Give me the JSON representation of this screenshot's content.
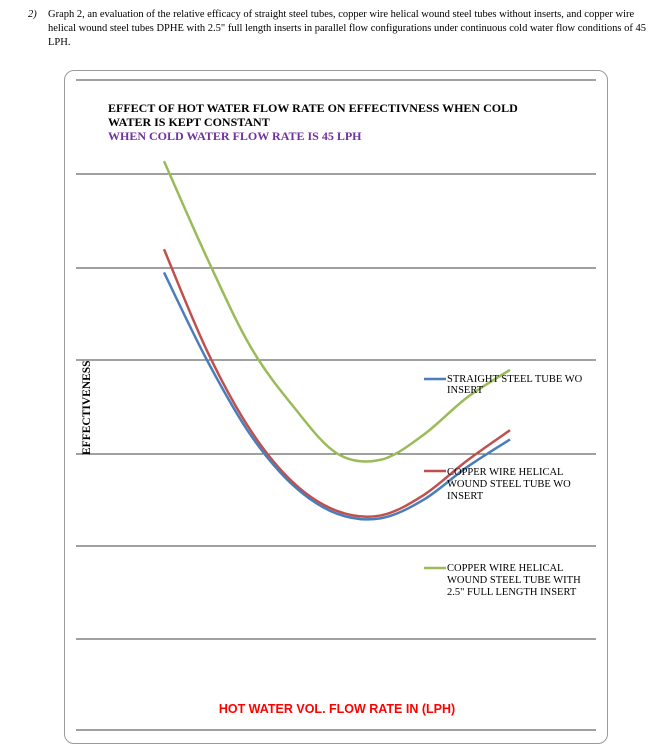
{
  "caption": {
    "number": "2)",
    "text": "Graph 2, an evaluation of the relative efficacy of straight steel tubes, copper wire helical wound steel tubes without inserts, and copper wire helical wound steel tubes DPHE with 2.5\" full length inserts in parallel flow configurations under continuous cold water flow conditions of 45 LPH."
  },
  "colors": {
    "straight": "#4a7ebb",
    "copper_wo": "#c0504d",
    "copper_with": "#9bbb59",
    "subtitle": "#7030a0",
    "xlabel": "#ff0000",
    "grid": "#000000"
  },
  "chart_data": {
    "type": "line",
    "title_line1": "EFFECT OF HOT WATER FLOW RATE ON EFFECTIVNESS WHEN COLD",
    "title_line2": "WATER IS KEPT CONSTANT",
    "subtitle": "WHEN COLD WATER FLOW RATE IS 45 LPH",
    "xlabel": "HOT  WATER VOL.  FLOW RATE  IN (LPH)",
    "ylabel": "EFFECTIVENESS",
    "xlim": [
      0,
      4
    ],
    "ylim": [
      0,
      6
    ],
    "grid": true,
    "legend_position": "right",
    "series": [
      {
        "name_lines": [
          "STRAIGHT STEEL TUBE WO",
          "INSERT"
        ],
        "x": [
          0,
          0.5,
          1,
          1.5,
          2,
          2.5,
          3,
          3.5,
          4
        ],
        "y": [
          3.95,
          3.0,
          2.2,
          1.65,
          1.35,
          1.3,
          1.5,
          1.85,
          2.15
        ]
      },
      {
        "name_lines": [
          "COPPER WIRE HELICAL",
          "WOUND STEEL TUBE WO",
          "INSERT"
        ],
        "x": [
          0,
          0.5,
          1,
          1.5,
          2,
          2.5,
          3,
          3.5,
          4
        ],
        "y": [
          4.2,
          3.1,
          2.25,
          1.68,
          1.38,
          1.33,
          1.55,
          1.92,
          2.25
        ]
      },
      {
        "name_lines": [
          "COPPER WIRE HELICAL",
          "WOUND STEEL TUBE WITH",
          "2.5\" FULL LENGTH INSERT"
        ],
        "x": [
          0,
          0.5,
          1,
          1.5,
          2,
          2.5,
          3,
          3.5,
          4
        ],
        "y": [
          5.15,
          4.1,
          3.15,
          2.5,
          2.0,
          1.93,
          2.2,
          2.6,
          2.9
        ]
      }
    ]
  }
}
